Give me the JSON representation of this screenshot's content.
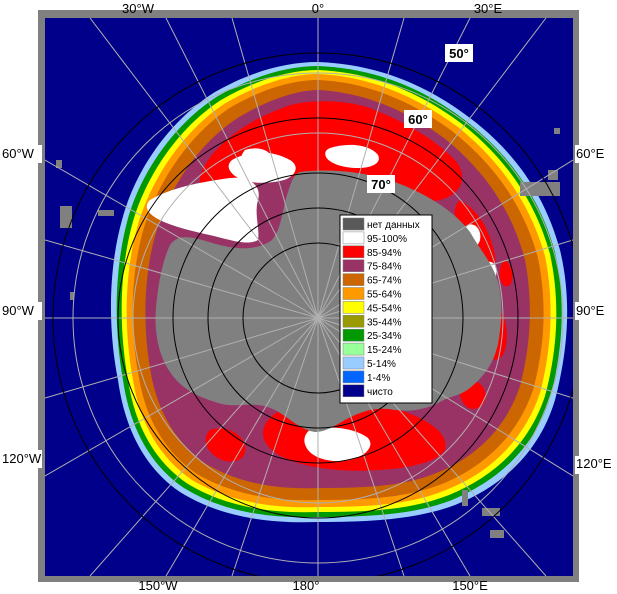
{
  "map": {
    "longitude_labels": {
      "top_30w": "30°W",
      "top_0": "0°",
      "top_30e": "30°E",
      "left_60w": "60°W",
      "left_90w": "90°W",
      "left_120w": "120°W",
      "right_60e": "60°E",
      "right_90e": "90°E",
      "right_120e": "120°E",
      "bottom_150w": "150°W",
      "bottom_180": "180°",
      "bottom_150e": "150°E"
    },
    "latitude_labels": {
      "lat_50": "50°",
      "lat_60": "60°",
      "lat_70": "70°"
    },
    "colors": {
      "ocean": "#00008b",
      "land": "#808080",
      "frame": "#808080",
      "graticule": "#b0b0b0",
      "circles": "#000000"
    }
  },
  "legend": {
    "items": [
      {
        "label": "нет данных",
        "color": "#595959"
      },
      {
        "label": "95-100%",
        "color": "#ffffff"
      },
      {
        "label": "85-94%",
        "color": "#ff0000"
      },
      {
        "label": "75-84%",
        "color": "#993366"
      },
      {
        "label": "65-74%",
        "color": "#cc6600"
      },
      {
        "label": "55-64%",
        "color": "#ff9900"
      },
      {
        "label": "45-54%",
        "color": "#ffff00"
      },
      {
        "label": "35-44%",
        "color": "#999900"
      },
      {
        "label": "25-34%",
        "color": "#009900"
      },
      {
        "label": "15-24%",
        "color": "#99ff99"
      },
      {
        "label": "5-14%",
        "color": "#99ccff"
      },
      {
        "label": "1-4%",
        "color": "#0066ff"
      },
      {
        "label": "чисто",
        "color": "#00008b"
      }
    ]
  }
}
